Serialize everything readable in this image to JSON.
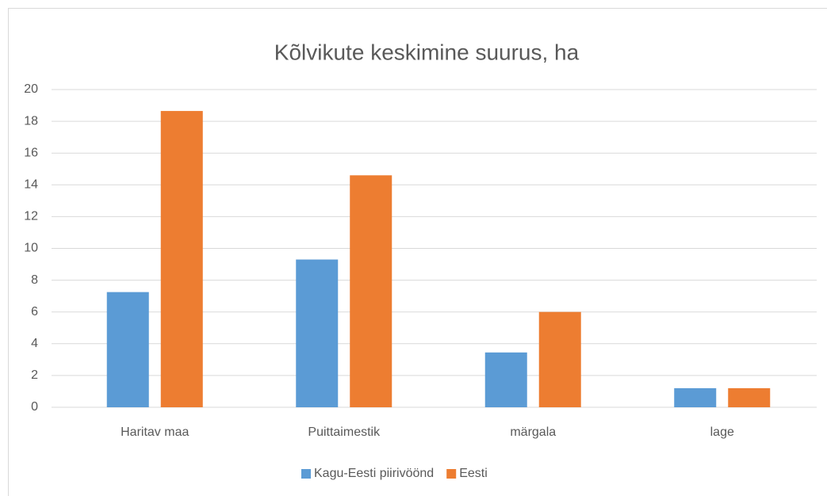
{
  "chart_data": {
    "type": "bar",
    "title": "Kõlvikute keskimine suurus, ha",
    "categories": [
      "Haritav maa",
      "Puittaimestik",
      "märgala",
      "lage"
    ],
    "series": [
      {
        "name": "Kagu-Eesti piirivöönd",
        "color": "#5b9bd5",
        "values": [
          7.25,
          9.3,
          3.45,
          1.2
        ]
      },
      {
        "name": "Eesti",
        "color": "#ed7d31",
        "values": [
          18.65,
          14.6,
          6.0,
          1.2
        ]
      }
    ],
    "ylim": [
      0,
      20
    ],
    "yticks": [
      0,
      2,
      4,
      6,
      8,
      10,
      12,
      14,
      16,
      18,
      20
    ],
    "grid": true,
    "legend": "bottom"
  }
}
